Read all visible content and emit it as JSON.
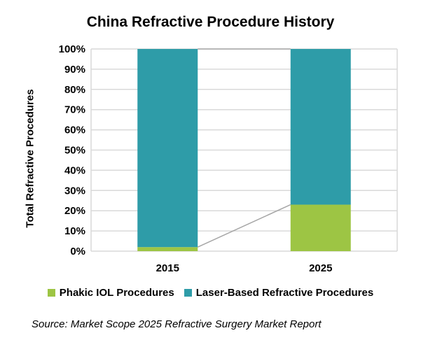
{
  "chart_data": {
    "type": "bar",
    "stacked": true,
    "title": "China Refractive Procedure History",
    "xlabel": "",
    "ylabel": "Total Refractive Procedures",
    "ylim": [
      0,
      100
    ],
    "yticks": [
      "0%",
      "10%",
      "20%",
      "30%",
      "40%",
      "50%",
      "60%",
      "70%",
      "80%",
      "90%",
      "100%"
    ],
    "categories": [
      "2015",
      "2025"
    ],
    "series": [
      {
        "name": "Phakic IOL Procedures",
        "values": [
          2,
          23
        ],
        "color": "#9DC544"
      },
      {
        "name": "Laser-Based Refractive Procedures",
        "values": [
          98,
          77
        ],
        "color": "#2E9CA8"
      }
    ],
    "series_lines": true,
    "grid": true,
    "legend": "bottom"
  },
  "source": "Source: Market Scope 2025 Refractive Surgery Market Report"
}
